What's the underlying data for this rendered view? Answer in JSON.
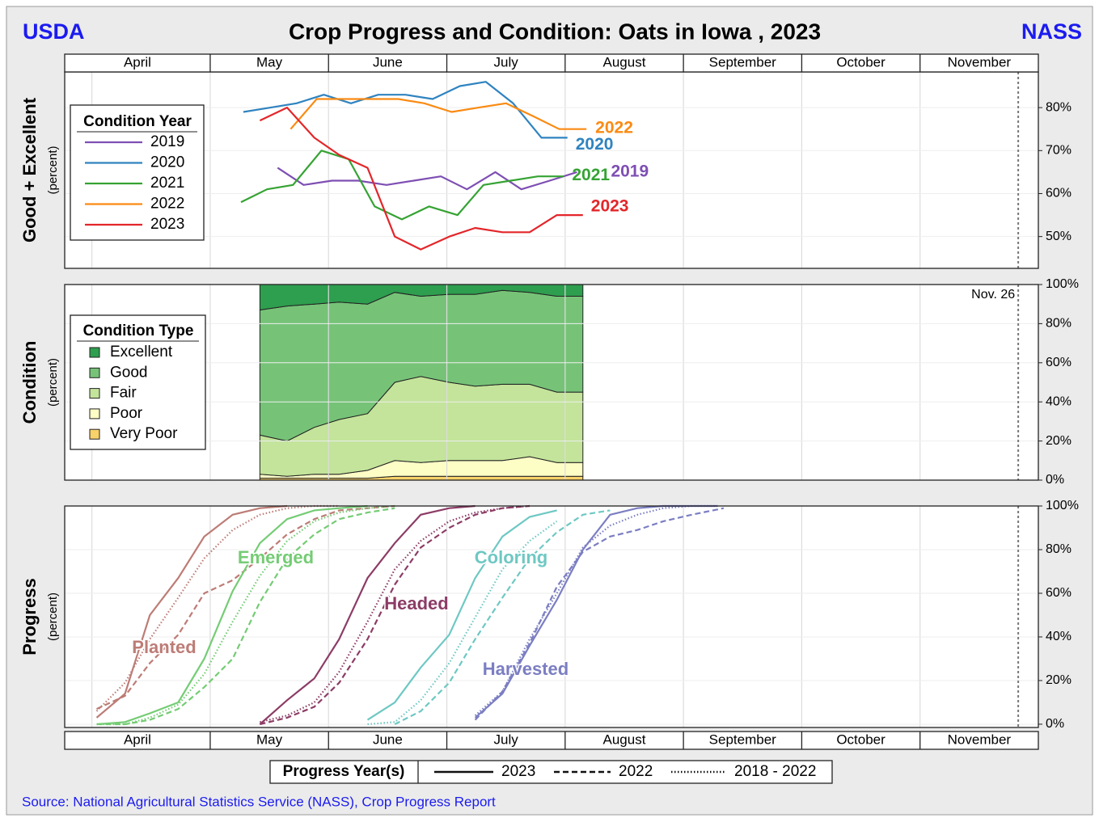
{
  "header": {
    "left": "USDA",
    "title": "Crop Progress and Condition: Oats in Iowa , 2023",
    "right": "NASS"
  },
  "source": "Source: National Agricultural Statistics Service (NASS), Crop Progress Report",
  "chart_data": [
    {
      "type": "line",
      "ylabel": "Good + Excellent",
      "ylabel_unit": "(percent)",
      "xlim": [
        3.77,
        12
      ],
      "xticks": [
        {
          "value": 4,
          "label": "April"
        },
        {
          "value": 5,
          "label": "May"
        },
        {
          "value": 6,
          "label": "June"
        },
        {
          "value": 7,
          "label": "July"
        },
        {
          "value": 8,
          "label": "August"
        },
        {
          "value": 9,
          "label": "September"
        },
        {
          "value": 10,
          "label": "October"
        },
        {
          "value": 11,
          "label": "November"
        }
      ],
      "ylim": [
        42.6,
        88.3
      ],
      "yticks": [
        {
          "value": 50,
          "label": "50%"
        },
        {
          "value": 60,
          "label": "60%"
        },
        {
          "value": 70,
          "label": "70%"
        },
        {
          "value": 80,
          "label": "80%"
        }
      ],
      "grid": true,
      "vline": {
        "x": 11.83
      },
      "legend_title": "Condition Year",
      "series": [
        {
          "name": "2019",
          "color": "#7e4fb3",
          "x": [
            5.57,
            5.79,
            6.03,
            6.25,
            6.49,
            6.72,
            6.95,
            7.17,
            7.41,
            7.63,
            7.87,
            8.1
          ],
          "values": [
            66,
            62,
            63,
            63,
            62,
            63,
            64,
            61,
            65,
            61,
            63,
            65
          ]
        },
        {
          "name": "2020",
          "color": "#2f83c0",
          "x": [
            5.28,
            5.51,
            5.73,
            5.96,
            6.19,
            6.42,
            6.65,
            6.88,
            7.11,
            7.33,
            7.56,
            7.8,
            8.02
          ],
          "values": [
            79,
            80,
            81,
            83,
            81,
            83,
            83,
            82,
            85,
            86,
            81,
            73,
            73
          ]
        },
        {
          "name": "2021",
          "color": "#35a333",
          "x": [
            5.26,
            5.48,
            5.7,
            5.94,
            6.17,
            6.39,
            6.62,
            6.85,
            7.09,
            7.31,
            7.54,
            7.77,
            7.99
          ],
          "values": [
            58,
            61,
            62,
            70,
            68,
            57,
            54,
            57,
            55,
            62,
            63,
            64,
            64
          ]
        },
        {
          "name": "2022",
          "color": "#fb8a12",
          "x": [
            5.68,
            5.9,
            6.13,
            6.35,
            6.59,
            6.81,
            7.04,
            7.27,
            7.5,
            7.73,
            7.95,
            8.18
          ],
          "values": [
            75,
            82,
            82,
            82,
            82,
            81,
            79,
            80,
            81,
            78,
            75,
            75
          ]
        },
        {
          "name": "2023",
          "color": "#e3262a",
          "x": [
            5.42,
            5.65,
            5.88,
            6.09,
            6.33,
            6.56,
            6.78,
            7.02,
            7.24,
            7.47,
            7.7,
            7.93,
            8.15
          ],
          "values": [
            77,
            80,
            73,
            69,
            66,
            50,
            47,
            50,
            52,
            51,
            51,
            55,
            55
          ]
        }
      ]
    },
    {
      "type": "stacked_area",
      "ylabel": "Condition",
      "ylabel_unit": "(percent)",
      "xlim": [
        3.77,
        12
      ],
      "xticks": [
        {
          "value": 4,
          "label": "April"
        },
        {
          "value": 5,
          "label": "May"
        },
        {
          "value": 6,
          "label": "June"
        },
        {
          "value": 7,
          "label": "July"
        },
        {
          "value": 8,
          "label": "August"
        },
        {
          "value": 9,
          "label": "September"
        },
        {
          "value": 10,
          "label": "October"
        },
        {
          "value": 11,
          "label": "November"
        }
      ],
      "ylim": [
        0,
        100
      ],
      "yticks": [
        {
          "value": 0,
          "label": "0%"
        },
        {
          "value": 20,
          "label": "20%"
        },
        {
          "value": 40,
          "label": "40%"
        },
        {
          "value": 60,
          "label": "60%"
        },
        {
          "value": 80,
          "label": "80%"
        },
        {
          "value": 100,
          "label": "100%"
        }
      ],
      "grid": true,
      "vline": {
        "x": 11.83,
        "label": "Nov. 26"
      },
      "legend_title": "Condition Type",
      "x": [
        5.42,
        5.65,
        5.88,
        6.09,
        6.33,
        6.56,
        6.78,
        7.02,
        7.24,
        7.47,
        7.7,
        7.93,
        8.15
      ],
      "series": [
        {
          "name": "Excellent",
          "color": "#2e9e4f",
          "values": [
            13,
            11,
            10,
            9,
            10,
            4,
            6,
            5,
            5,
            3,
            4,
            6,
            6
          ]
        },
        {
          "name": "Good",
          "color": "#76c378",
          "values": [
            64,
            69,
            63,
            60,
            56,
            46,
            41,
            45,
            47,
            48,
            47,
            49,
            49
          ]
        },
        {
          "name": "Fair",
          "color": "#c3e49a",
          "values": [
            20,
            18,
            24,
            28,
            29,
            40,
            44,
            40,
            38,
            39,
            37,
            36,
            36
          ]
        },
        {
          "name": "Poor",
          "color": "#fdfdc6",
          "values": [
            2,
            1,
            2,
            2,
            4,
            8,
            7,
            8,
            8,
            8,
            10,
            7,
            7
          ]
        },
        {
          "name": "Very Poor",
          "color": "#f8d26a",
          "values": [
            1,
            1,
            1,
            1,
            1,
            2,
            2,
            2,
            2,
            2,
            2,
            2,
            2
          ]
        }
      ]
    },
    {
      "type": "progress",
      "ylabel": "Progress",
      "ylabel_unit": "(percent)",
      "xlim": [
        3.77,
        12
      ],
      "xticks": [
        {
          "value": 4,
          "label": "April"
        },
        {
          "value": 5,
          "label": "May"
        },
        {
          "value": 6,
          "label": "June"
        },
        {
          "value": 7,
          "label": "July"
        },
        {
          "value": 8,
          "label": "August"
        },
        {
          "value": 9,
          "label": "September"
        },
        {
          "value": 10,
          "label": "October"
        },
        {
          "value": 11,
          "label": "November"
        }
      ],
      "ylim": [
        -1.5,
        100
      ],
      "yticks": [
        {
          "value": 0,
          "label": "0%"
        },
        {
          "value": 20,
          "label": "20%"
        },
        {
          "value": 40,
          "label": "40%"
        },
        {
          "value": 60,
          "label": "60%"
        },
        {
          "value": 80,
          "label": "80%"
        },
        {
          "value": 100,
          "label": "100%"
        }
      ],
      "grid": true,
      "vline": {
        "x": 11.83
      },
      "legend_title": "Progress Year(s)",
      "line_styles": [
        {
          "label": "2023",
          "dash": "solid"
        },
        {
          "label": "2022",
          "dash": "dashed"
        },
        {
          "label": "2018 - 2022",
          "dash": "dotted"
        }
      ],
      "series": [
        {
          "name": "Planted",
          "color": "#bd7c76",
          "lines": [
            {
              "x": [
                4.04,
                4.28,
                4.49,
                4.73,
                4.95,
                5.19,
                5.42,
                5.65
              ],
              "values": [
                3,
                14,
                50,
                67,
                86,
                96,
                99,
                100
              ]
            },
            {
              "x": [
                4.04,
                4.28,
                4.49,
                4.73,
                4.95,
                5.19,
                5.42,
                5.65,
                5.88,
                6.09,
                6.33,
                6.56
              ],
              "values": [
                7,
                13,
                28,
                41,
                60,
                66,
                76,
                87,
                94,
                98,
                99,
                100
              ]
            },
            {
              "x": [
                4.04,
                4.28,
                4.49,
                4.73,
                4.95,
                5.19,
                5.42,
                5.65,
                5.88,
                6.09
              ],
              "values": [
                6,
                19,
                39,
                58,
                76,
                89,
                96,
                99,
                100,
                100
              ]
            }
          ]
        },
        {
          "name": "Emerged",
          "color": "#74cc74",
          "lines": [
            {
              "x": [
                4.04,
                4.28,
                4.49,
                4.73,
                4.95,
                5.19,
                5.42,
                5.65,
                5.88,
                6.09,
                6.33
              ],
              "values": [
                0,
                1,
                5,
                10,
                30,
                61,
                83,
                94,
                98,
                99,
                100
              ]
            },
            {
              "x": [
                4.04,
                4.28,
                4.49,
                4.73,
                4.95,
                5.19,
                5.42,
                5.65,
                5.88,
                6.09,
                6.33,
                6.56
              ],
              "values": [
                0,
                0,
                2,
                7,
                17,
                30,
                56,
                76,
                87,
                94,
                97,
                99
              ]
            },
            {
              "x": [
                4.04,
                4.28,
                4.49,
                4.73,
                4.95,
                5.19,
                5.42,
                5.65,
                5.88,
                6.09,
                6.33,
                6.56
              ],
              "values": [
                0,
                0,
                3,
                9,
                23,
                47,
                68,
                84,
                93,
                97,
                99,
                100
              ]
            }
          ]
        },
        {
          "name": "Headed",
          "color": "#8c3c66",
          "lines": [
            {
              "x": [
                5.42,
                5.65,
                5.88,
                6.09,
                6.33,
                6.56,
                6.78,
                7.02,
                7.24
              ],
              "values": [
                0,
                11,
                21,
                39,
                67,
                83,
                96,
                99,
                100
              ]
            },
            {
              "x": [
                5.42,
                5.65,
                5.88,
                6.09,
                6.33,
                6.56,
                6.78,
                7.02,
                7.24,
                7.47,
                7.7
              ],
              "values": [
                0,
                3,
                8,
                19,
                39,
                64,
                81,
                90,
                96,
                99,
                100
              ]
            },
            {
              "x": [
                5.42,
                5.65,
                5.88,
                6.09,
                6.33,
                6.56,
                6.78,
                7.02,
                7.24,
                7.47,
                7.7
              ],
              "values": [
                1,
                4,
                10,
                24,
                47,
                71,
                84,
                93,
                97,
                99,
                100
              ]
            }
          ]
        },
        {
          "name": "Coloring",
          "color": "#6ec8c3",
          "lines": [
            {
              "x": [
                6.33,
                6.56,
                6.78,
                7.02,
                7.24,
                7.47,
                7.7,
                7.93
              ],
              "values": [
                2,
                10,
                26,
                41,
                67,
                86,
                95,
                98
              ]
            },
            {
              "x": [
                6.56,
                6.78,
                7.02,
                7.24,
                7.47,
                7.7,
                7.93,
                8.15,
                8.38
              ],
              "values": [
                0,
                6,
                19,
                39,
                58,
                76,
                88,
                96,
                98
              ]
            },
            {
              "x": [
                6.33,
                6.56,
                6.78,
                7.02,
                7.24,
                7.47,
                7.7,
                7.93
              ],
              "values": [
                0,
                1,
                11,
                28,
                49,
                71,
                84,
                93
              ]
            }
          ]
        },
        {
          "name": "Harvested",
          "color": "#7b7ec2",
          "lines": [
            {
              "x": [
                7.24,
                7.47,
                7.7,
                7.93,
                8.15,
                8.38,
                8.61,
                8.83,
                9.07,
                9.29
              ],
              "values": [
                3,
                14,
                36,
                57,
                80,
                96,
                99,
                100,
                100,
                100
              ]
            },
            {
              "x": [
                7.24,
                7.47,
                7.7,
                7.93,
                8.15,
                8.38,
                8.61,
                8.83,
                9.07,
                9.34
              ],
              "values": [
                2,
                15,
                37,
                63,
                79,
                86,
                89,
                93,
                96,
                99
              ]
            },
            {
              "x": [
                7.24,
                7.47,
                7.7,
                7.93,
                8.15,
                8.38,
                8.61,
                8.83,
                9.07,
                9.29
              ],
              "values": [
                4,
                15,
                39,
                60,
                81,
                91,
                96,
                99,
                100,
                100
              ]
            }
          ]
        }
      ]
    }
  ]
}
